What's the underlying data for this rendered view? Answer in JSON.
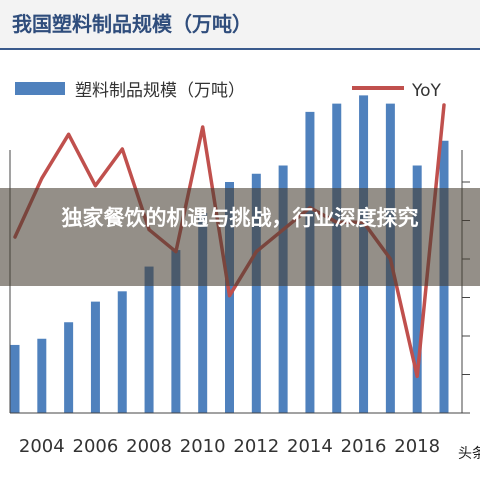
{
  "title": "我国塑料制品规模（万吨）",
  "overlay_text": "独家餐饮的机遇与挑战，行业深度探究",
  "watermark": "头条",
  "colors": {
    "bar": "#4f81bd",
    "line": "#c0504d",
    "title": "#2f4d7c"
  },
  "chart_data": {
    "type": "bar",
    "title": "",
    "legend_position": "top",
    "x": [
      2003,
      2004,
      2005,
      2006,
      2007,
      2008,
      2009,
      2010,
      2011,
      2012,
      2013,
      2014,
      2015,
      2016,
      2017,
      2018,
      2019
    ],
    "xticks": [
      "2004",
      "2006",
      "2008",
      "2010",
      "2012",
      "2014",
      "2016",
      "2018"
    ],
    "series": [
      {
        "name": "塑料制品规模（万吨）",
        "type": "bar",
        "values": [
          1650,
          1800,
          2200,
          2700,
          2950,
          3550,
          3950,
          4850,
          5600,
          5800,
          6000,
          7300,
          7500,
          7700,
          7500,
          6000,
          6600
        ]
      },
      {
        "name": "YoY",
        "type": "line",
        "values": [
          14,
          22,
          28,
          21,
          26,
          15,
          12,
          29,
          6,
          12,
          15,
          18,
          16,
          16,
          11,
          -5,
          32
        ]
      }
    ],
    "xlim": [
      2003,
      2019
    ],
    "ylim": [
      0,
      8000
    ],
    "y2lim": [
      -10,
      35
    ],
    "grid": false
  }
}
